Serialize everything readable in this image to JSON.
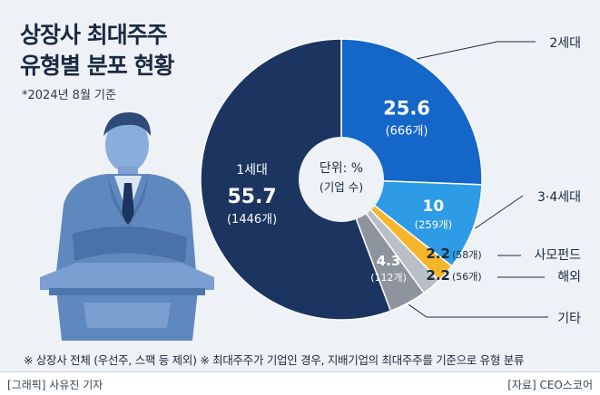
{
  "title_line1": "상장사 최대주주",
  "title_line2": "유형별 분포 현황",
  "basis_note": "*2024년 8월 기준",
  "center_label_line1": "단위: %",
  "center_label_line2": "(기업 수)",
  "footnote": "※ 상장사 전체 (우선주, 스팩 등 제외)  ※ 최대주주가 기업인 경우, 지배기업의 최대주주를 기준으로 유형 분류",
  "credit_left": "[그래픽] 사유진 기자",
  "credit_right": "[자료] CEO스코어",
  "colors": {
    "first_gen": "#1b3560",
    "second_gen": "#1467c9",
    "third_gen": "#2d9be6",
    "pef": "#f7b52b",
    "overseas": "#b9bfc7",
    "other": "#8d949d",
    "illustration": "#6d94c8",
    "background": "#eef1f5"
  },
  "chart_data": {
    "type": "pie",
    "unit": "%",
    "slices": [
      {
        "key": "second",
        "label": "2세대",
        "value": 25.6,
        "value_label": "25.6",
        "count_label": "(666개)"
      },
      {
        "key": "third",
        "label": "3·4세대",
        "value": 10,
        "value_label": "10",
        "count_label": "(259개)"
      },
      {
        "key": "pef",
        "label": "사모펀드",
        "value": 2.2,
        "value_label": "2.2",
        "count_label": "(58개)"
      },
      {
        "key": "overseas",
        "label": "해외",
        "value": 2.2,
        "value_label": "2.2",
        "count_label": "(56개)"
      },
      {
        "key": "other",
        "label": "기타",
        "value": 4.3,
        "value_label": "4.3",
        "count_label": "(112개)"
      },
      {
        "key": "first",
        "label": "1세대",
        "value": 55.7,
        "value_label": "55.7",
        "count_label": "(1446개)"
      }
    ]
  }
}
